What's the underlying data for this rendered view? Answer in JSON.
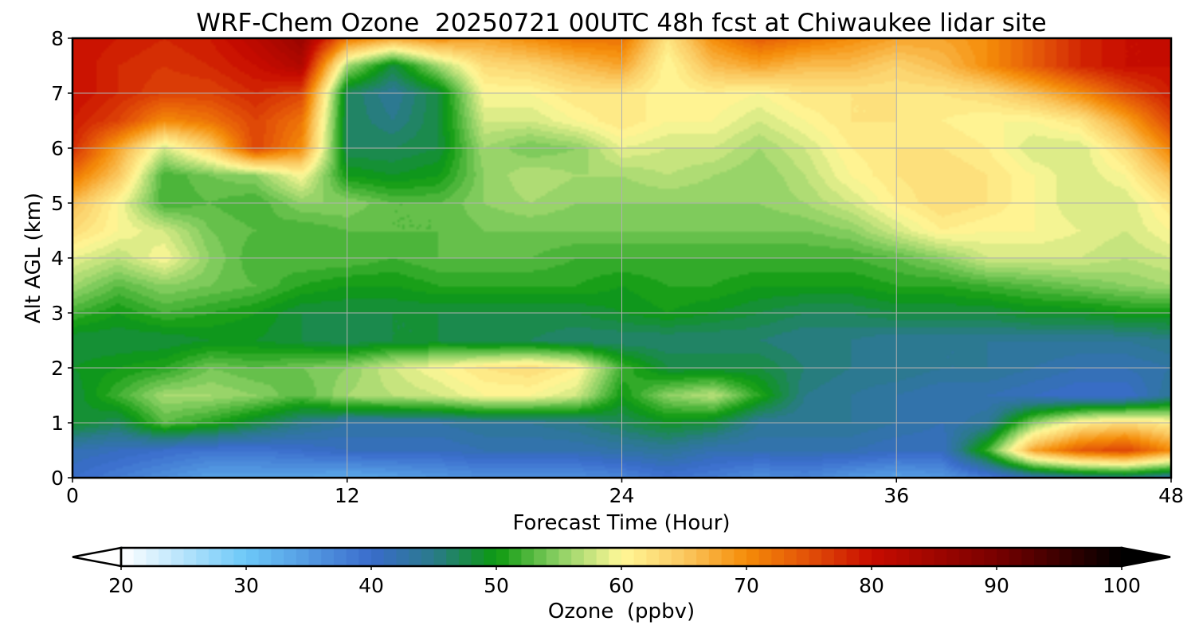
{
  "chart_data": {
    "type": "heatmap",
    "title": "WRF-Chem Ozone  20250721 00UTC 48h fcst at Chiwaukee lidar site",
    "xlabel": "Forecast Time (Hour)",
    "ylabel": "Alt AGL (km)",
    "xlim": [
      0,
      48
    ],
    "ylim": [
      0,
      8
    ],
    "x_ticks": [
      0,
      12,
      24,
      36,
      48
    ],
    "y_ticks": [
      0,
      1,
      2,
      3,
      4,
      5,
      6,
      7,
      8
    ],
    "grid": true,
    "x_hours": [
      0,
      2,
      4,
      6,
      8,
      10,
      12,
      14,
      16,
      18,
      20,
      22,
      24,
      26,
      28,
      30,
      32,
      34,
      36,
      38,
      40,
      42,
      44,
      46,
      48
    ],
    "y_km": [
      0,
      0.5,
      1,
      1.5,
      2,
      2.5,
      3,
      3.5,
      4,
      4.5,
      5,
      5.5,
      6,
      6.5,
      7,
      7.5,
      8
    ],
    "ozone_ppbv": [
      [
        40,
        38,
        36,
        34,
        34,
        34,
        33,
        34,
        35,
        36,
        36,
        36,
        37,
        39,
        38,
        36,
        37,
        35,
        34,
        35,
        38,
        42,
        44,
        45,
        43
      ],
      [
        42,
        41,
        40,
        39,
        39,
        40,
        41,
        41,
        41,
        42,
        42,
        42,
        43,
        44,
        42,
        42,
        42,
        42,
        41,
        41,
        52,
        68,
        74,
        76,
        70
      ],
      [
        49,
        47,
        53,
        51,
        48,
        45,
        43,
        43,
        43,
        44,
        44,
        45,
        47,
        49,
        48,
        44,
        44,
        44,
        43,
        42,
        44,
        55,
        61,
        63,
        61
      ],
      [
        48,
        52,
        56,
        56,
        55,
        53,
        56,
        57,
        58,
        60,
        60,
        58,
        50,
        55,
        57,
        51,
        45,
        44,
        43,
        42,
        42,
        41,
        40,
        40,
        44
      ],
      [
        49,
        50,
        51,
        54,
        53,
        54,
        55,
        58,
        60,
        62,
        63,
        61,
        52,
        48,
        48,
        48,
        46,
        45,
        45,
        44,
        44,
        43,
        42,
        42,
        43
      ],
      [
        48,
        48,
        48,
        49,
        49,
        48,
        47,
        48,
        48,
        47,
        47,
        46,
        46,
        46,
        46,
        46,
        45,
        45,
        44,
        44,
        44,
        44,
        44,
        44,
        45
      ],
      [
        52,
        50,
        52,
        51,
        50,
        48,
        48,
        48,
        48,
        48,
        48,
        48,
        49,
        50,
        49,
        48,
        47,
        47,
        48,
        48,
        48,
        49,
        49,
        50,
        50
      ],
      [
        56,
        53,
        55,
        54,
        53,
        51,
        50,
        50,
        51,
        51,
        51,
        51,
        50,
        51,
        51,
        50,
        50,
        50,
        51,
        51,
        52,
        53,
        54,
        55,
        56
      ],
      [
        59,
        57,
        60,
        55,
        52,
        53,
        53,
        52,
        53,
        53,
        53,
        52,
        52,
        52,
        52,
        52,
        52,
        52,
        53,
        55,
        58,
        58,
        58,
        57,
        58
      ],
      [
        63,
        60,
        58,
        54,
        53,
        52,
        53,
        53,
        53,
        54,
        54,
        54,
        54,
        54,
        54,
        54,
        54,
        55,
        58,
        61,
        60,
        60,
        59,
        58,
        60
      ],
      [
        66,
        60,
        52,
        53,
        52,
        55,
        55,
        53,
        53,
        55,
        56,
        55,
        55,
        55,
        55,
        55,
        56,
        58,
        61,
        63,
        62,
        60,
        58,
        58,
        62
      ],
      [
        72,
        65,
        52,
        54,
        55,
        60,
        50,
        49,
        50,
        55,
        57,
        56,
        56,
        57,
        56,
        55,
        57,
        60,
        62,
        63,
        62,
        60,
        58,
        60,
        66
      ],
      [
        78,
        68,
        58,
        64,
        76,
        70,
        47,
        47,
        48,
        56,
        54,
        55,
        59,
        58,
        58,
        56,
        58,
        61,
        62,
        62,
        61,
        58,
        58,
        63,
        71
      ],
      [
        79,
        76,
        70,
        72,
        76,
        72,
        47,
        45,
        48,
        58,
        58,
        60,
        62,
        60,
        60,
        58,
        60,
        62,
        62,
        61,
        60,
        60,
        62,
        68,
        76
      ],
      [
        80,
        78,
        76,
        76,
        78,
        76,
        47,
        44,
        48,
        60,
        60,
        62,
        62,
        60,
        61,
        60,
        62,
        62,
        62,
        62,
        63,
        66,
        70,
        75,
        79
      ],
      [
        80,
        78,
        77,
        78,
        80,
        83,
        56,
        48,
        56,
        63,
        64,
        66,
        68,
        60,
        66,
        68,
        66,
        66,
        64,
        66,
        70,
        74,
        78,
        80,
        80
      ],
      [
        80,
        79,
        78,
        79,
        82,
        86,
        72,
        68,
        70,
        68,
        70,
        72,
        72,
        62,
        70,
        74,
        72,
        70,
        68,
        68,
        70,
        74,
        78,
        80,
        80
      ]
    ],
    "colorbar": {
      "label": "Ozone  (ppbv)",
      "min": 20,
      "max": 100,
      "ticks": [
        20,
        30,
        40,
        50,
        60,
        70,
        80,
        90,
        100
      ],
      "extend": "both",
      "stops": [
        {
          "v": 20,
          "c": "#ffffff"
        },
        {
          "v": 30,
          "c": "#6cc8f8"
        },
        {
          "v": 40,
          "c": "#3a6ccc"
        },
        {
          "v": 45,
          "c": "#2a7a8a"
        },
        {
          "v": 50,
          "c": "#0c9a10"
        },
        {
          "v": 55,
          "c": "#8cd064"
        },
        {
          "v": 60,
          "c": "#fff898"
        },
        {
          "v": 65,
          "c": "#fac860"
        },
        {
          "v": 70,
          "c": "#f58c08"
        },
        {
          "v": 75,
          "c": "#e25008"
        },
        {
          "v": 80,
          "c": "#c80c00"
        },
        {
          "v": 90,
          "c": "#780000"
        },
        {
          "v": 100,
          "c": "#000000"
        }
      ]
    }
  }
}
